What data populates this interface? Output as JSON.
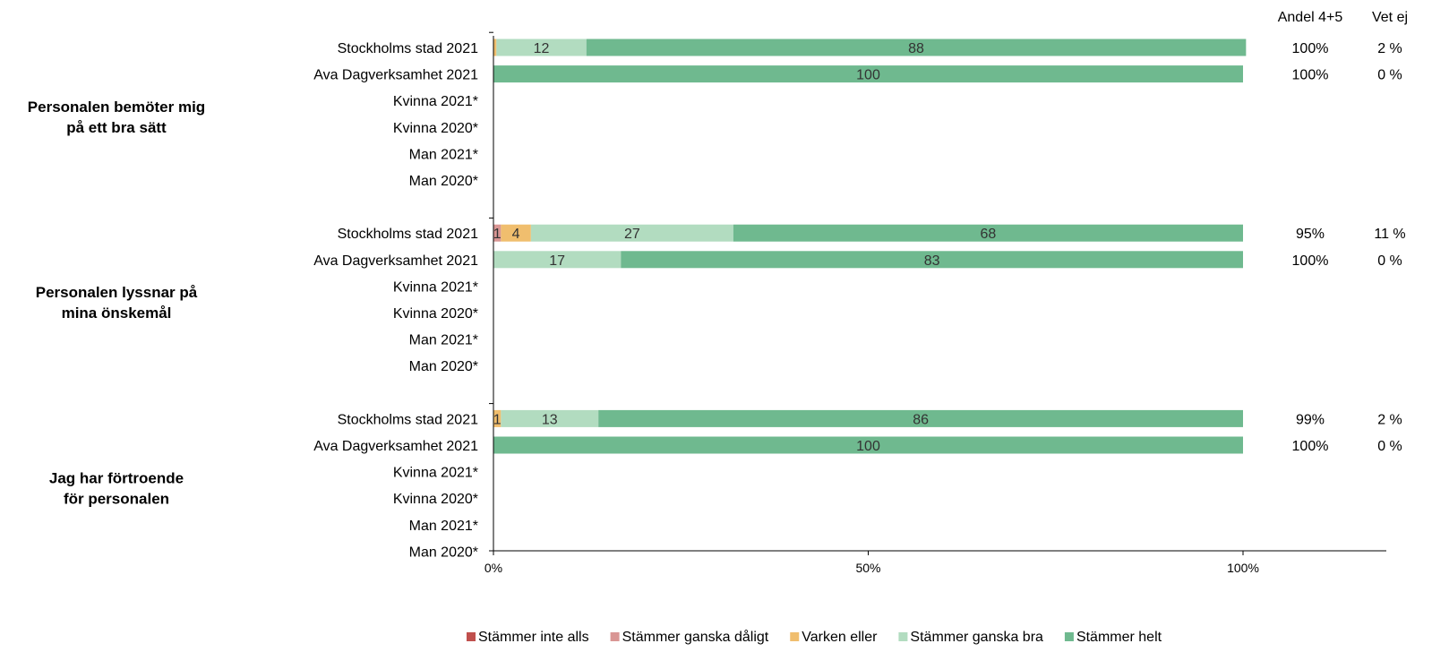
{
  "chart_data": {
    "type": "bar",
    "orientation": "horizontal",
    "stacked": true,
    "xlim": [
      0,
      100
    ],
    "x_ticks": [
      "0%",
      "50%",
      "100%"
    ],
    "grid": false,
    "legend_position": "bottom",
    "series": [
      {
        "name": "Stämmer inte alls",
        "color": "#C0504D"
      },
      {
        "name": "Stämmer ganska dåligt",
        "color": "#D99694"
      },
      {
        "name": "Varken eller",
        "color": "#F0BE6E"
      },
      {
        "name": "Stämmer ganska bra",
        "color": "#B2DCC0"
      },
      {
        "name": "Stämmer helt",
        "color": "#6FB98F"
      }
    ],
    "extra_columns": [
      "Andel 4+5",
      "Vet ej"
    ],
    "groups": [
      {
        "label": "Personalen bemöter mig på ett bra sätt",
        "rows": [
          {
            "label": "Stockholms stad 2021",
            "values": [
              0,
              0,
              0.4,
              12,
              88
            ],
            "data_labels": [
              "",
              "",
              "",
              "12",
              "88"
            ],
            "andel": "100%",
            "vet_ej": "2 %"
          },
          {
            "label": "Ava Dagverksamhet 2021",
            "values": [
              0,
              0,
              0,
              0,
              100
            ],
            "data_labels": [
              "",
              "",
              "",
              "",
              "100"
            ],
            "andel": "100%",
            "vet_ej": "0 %"
          },
          {
            "label": "Kvinna 2021*",
            "values": [
              0,
              0,
              0,
              0,
              0
            ],
            "data_labels": [
              "",
              "",
              "",
              "",
              ""
            ],
            "andel": "",
            "vet_ej": ""
          },
          {
            "label": "Kvinna 2020*",
            "values": [
              0,
              0,
              0,
              0,
              0
            ],
            "data_labels": [
              "",
              "",
              "",
              "",
              ""
            ],
            "andel": "",
            "vet_ej": ""
          },
          {
            "label": "Man 2021*",
            "values": [
              0,
              0,
              0,
              0,
              0
            ],
            "data_labels": [
              "",
              "",
              "",
              "",
              ""
            ],
            "andel": "",
            "vet_ej": ""
          },
          {
            "label": "Man 2020*",
            "values": [
              0,
              0,
              0,
              0,
              0
            ],
            "data_labels": [
              "",
              "",
              "",
              "",
              ""
            ],
            "andel": "",
            "vet_ej": ""
          }
        ]
      },
      {
        "label": "Personalen lyssnar på mina önskemål",
        "rows": [
          {
            "label": "Stockholms stad 2021",
            "values": [
              0,
              1,
              4,
              27,
              68
            ],
            "data_labels": [
              "",
              "1",
              "4",
              "27",
              "68"
            ],
            "andel": "95%",
            "vet_ej": "11 %"
          },
          {
            "label": "Ava Dagverksamhet 2021",
            "values": [
              0,
              0,
              0,
              17,
              83
            ],
            "data_labels": [
              "",
              "",
              "",
              "17",
              "83"
            ],
            "andel": "100%",
            "vet_ej": "0 %"
          },
          {
            "label": "Kvinna 2021*",
            "values": [
              0,
              0,
              0,
              0,
              0
            ],
            "data_labels": [
              "",
              "",
              "",
              "",
              ""
            ],
            "andel": "",
            "vet_ej": ""
          },
          {
            "label": "Kvinna 2020*",
            "values": [
              0,
              0,
              0,
              0,
              0
            ],
            "data_labels": [
              "",
              "",
              "",
              "",
              ""
            ],
            "andel": "",
            "vet_ej": ""
          },
          {
            "label": "Man 2021*",
            "values": [
              0,
              0,
              0,
              0,
              0
            ],
            "data_labels": [
              "",
              "",
              "",
              "",
              ""
            ],
            "andel": "",
            "vet_ej": ""
          },
          {
            "label": "Man 2020*",
            "values": [
              0,
              0,
              0,
              0,
              0
            ],
            "data_labels": [
              "",
              "",
              "",
              "",
              ""
            ],
            "andel": "",
            "vet_ej": ""
          }
        ]
      },
      {
        "label": "Jag har förtroende för personalen",
        "rows": [
          {
            "label": "Stockholms stad 2021",
            "values": [
              0,
              0,
              1,
              13,
              86
            ],
            "data_labels": [
              "",
              "",
              "1",
              "13",
              "86"
            ],
            "andel": "99%",
            "vet_ej": "2 %"
          },
          {
            "label": "Ava Dagverksamhet 2021",
            "values": [
              0,
              0,
              0,
              0,
              100
            ],
            "data_labels": [
              "",
              "",
              "",
              "",
              "100"
            ],
            "andel": "100%",
            "vet_ej": "0 %"
          },
          {
            "label": "Kvinna 2021*",
            "values": [
              0,
              0,
              0,
              0,
              0
            ],
            "data_labels": [
              "",
              "",
              "",
              "",
              ""
            ],
            "andel": "",
            "vet_ej": ""
          },
          {
            "label": "Kvinna 2020*",
            "values": [
              0,
              0,
              0,
              0,
              0
            ],
            "data_labels": [
              "",
              "",
              "",
              "",
              ""
            ],
            "andel": "",
            "vet_ej": ""
          },
          {
            "label": "Man 2021*",
            "values": [
              0,
              0,
              0,
              0,
              0
            ],
            "data_labels": [
              "",
              "",
              "",
              "",
              ""
            ],
            "andel": "",
            "vet_ej": ""
          },
          {
            "label": "Man 2020*",
            "values": [
              0,
              0,
              0,
              0,
              0
            ],
            "data_labels": [
              "",
              "",
              "",
              "",
              ""
            ],
            "andel": "",
            "vet_ej": ""
          }
        ]
      }
    ]
  }
}
